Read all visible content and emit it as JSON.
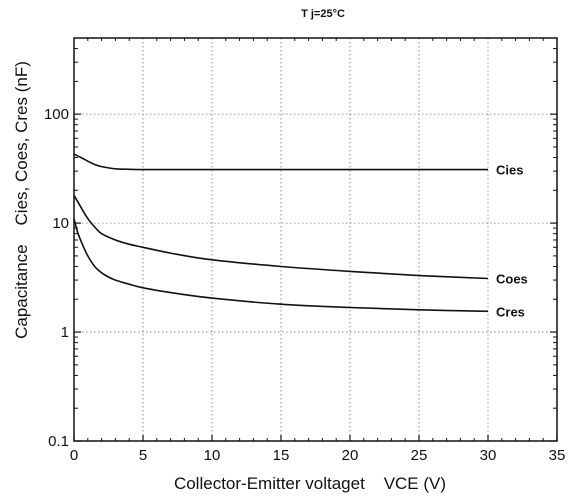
{
  "chart_data": {
    "type": "line",
    "title": "T j=25°C",
    "xlabel": "Collector-Emitter voltaget    VCE (V)",
    "ylabel": "Capacitance    Cies, Coes, Cres (nF)",
    "xlim": [
      0,
      35
    ],
    "ylim": [
      0.1,
      500
    ],
    "yscale": "log",
    "grid": true,
    "x_ticks": [
      0,
      5,
      10,
      15,
      20,
      25,
      30,
      35
    ],
    "y_ticks": [
      0.1,
      1,
      10,
      100
    ],
    "x_tick_labels": [
      "0",
      "5",
      "10",
      "15",
      "20",
      "25",
      "30",
      "35"
    ],
    "y_tick_labels": [
      "0.1",
      "1",
      "10",
      "100"
    ],
    "series": [
      {
        "name": "Cies",
        "x": [
          0,
          0.5,
          1,
          1.5,
          2,
          3,
          4,
          5,
          7,
          10,
          15,
          20,
          25,
          30
        ],
        "y": [
          43,
          40,
          37,
          34.5,
          33,
          31.5,
          31.2,
          31,
          31,
          31,
          31,
          31,
          31,
          31
        ]
      },
      {
        "name": "Coes",
        "x": [
          0,
          0.5,
          1,
          1.5,
          2,
          3,
          4,
          5,
          7,
          10,
          15,
          20,
          25,
          30
        ],
        "y": [
          18,
          14,
          11,
          9.2,
          8,
          7,
          6.4,
          6,
          5.3,
          4.6,
          4,
          3.6,
          3.3,
          3.1
        ]
      },
      {
        "name": "Cres",
        "x": [
          0,
          0.3,
          0.7,
          1,
          1.5,
          2,
          2.5,
          3,
          4,
          5,
          7,
          10,
          15,
          20,
          25,
          30
        ],
        "y": [
          11,
          8,
          6,
          5,
          4,
          3.5,
          3.2,
          3,
          2.75,
          2.55,
          2.3,
          2.05,
          1.8,
          1.68,
          1.6,
          1.55
        ]
      }
    ]
  }
}
